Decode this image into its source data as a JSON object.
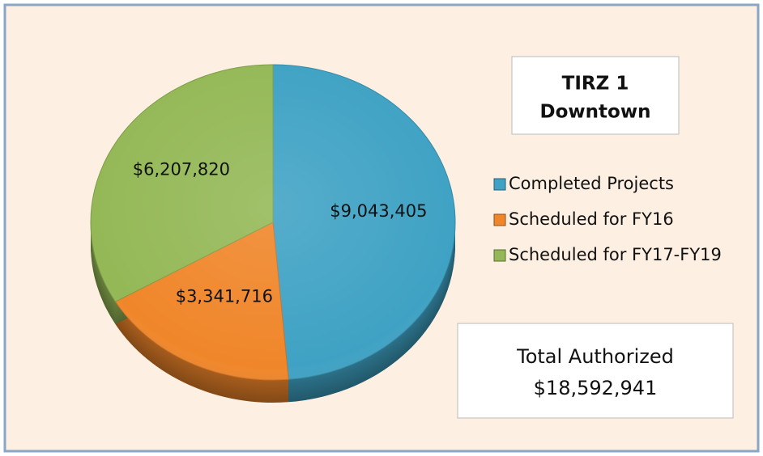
{
  "chart_data": {
    "type": "pie",
    "title": [
      "TIRZ 1",
      "Downtown"
    ],
    "categories": [
      "Completed Projects",
      "Scheduled for FY16",
      "Scheduled for FY17-FY19"
    ],
    "values": [
      9043405,
      3341716,
      6207820
    ],
    "value_labels": [
      "$9,043,405",
      "$3,341,716",
      "$6,207,820"
    ],
    "colors": [
      "#3fa2c4",
      "#f0862a",
      "#94b856"
    ],
    "legend": "right",
    "annotations": [
      "Total Authorized",
      "$18,592,941"
    ]
  }
}
